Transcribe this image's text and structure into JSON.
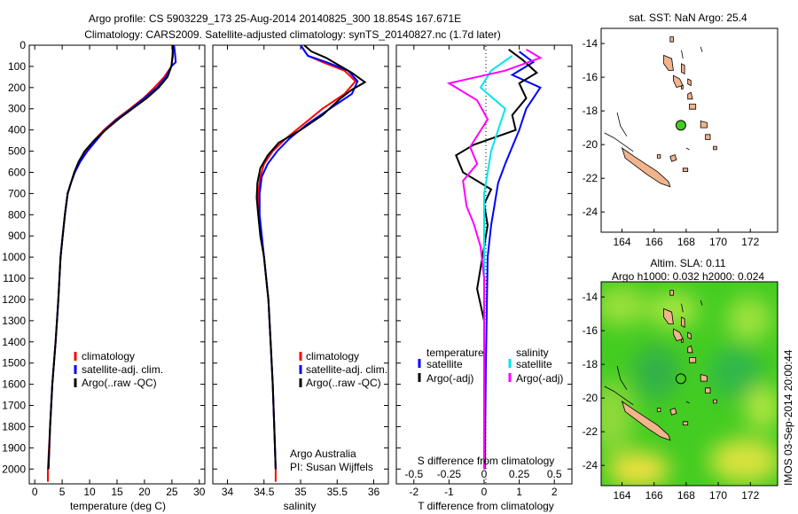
{
  "header": {
    "line1": "Argo profile: CS 5903229_173 25-Aug-2014 20140825_300 18.854S 167.671E",
    "line2": "Climatology: CARS2009. Satellite-adjusted climatology: synTS_20140827.nc (1.7d later)"
  },
  "colors": {
    "climatology": "#ff0000",
    "satellite": "#0000ff",
    "argo": "#000000",
    "cyan": "#00e5ee",
    "magenta": "#ff00ff",
    "land": "#f2b48c",
    "marker": "#44cc22"
  },
  "chart_data": [
    {
      "type": "line",
      "panel": "temperature",
      "xlabel": "temperature (deg C)",
      "xlim": [
        -1,
        31
      ],
      "xticks": [
        0,
        5,
        10,
        15,
        20,
        25,
        30
      ],
      "ylim": [
        0,
        2070
      ],
      "yticks": [
        0,
        100,
        200,
        300,
        400,
        500,
        600,
        700,
        800,
        900,
        1000,
        1100,
        1200,
        1300,
        1400,
        1500,
        1600,
        1700,
        1800,
        1900,
        2000
      ],
      "yreversed": true,
      "legend": [
        "climatology",
        "satellite-adj. clim.",
        "Argo(..raw -QC)"
      ],
      "series": [
        {
          "name": "climatology",
          "color": "#ff0000",
          "points": [
            [
              25.3,
              0
            ],
            [
              25.2,
              50
            ],
            [
              24.9,
              100
            ],
            [
              23.6,
              150
            ],
            [
              21.8,
              200
            ],
            [
              19.8,
              250
            ],
            [
              17.4,
              300
            ],
            [
              14.8,
              350
            ],
            [
              12.6,
              400
            ],
            [
              10.8,
              450
            ],
            [
              9.4,
              500
            ],
            [
              8.2,
              550
            ],
            [
              7.3,
              600
            ],
            [
              6.6,
              650
            ],
            [
              6.0,
              700
            ],
            [
              5.5,
              800
            ],
            [
              5.1,
              900
            ],
            [
              4.7,
              1000
            ],
            [
              4.3,
              1200
            ],
            [
              3.8,
              1400
            ],
            [
              3.2,
              1600
            ],
            [
              2.8,
              1800
            ],
            [
              2.4,
              2000
            ],
            [
              2.4,
              2060
            ]
          ]
        },
        {
          "name": "satellite-adj. clim.",
          "color": "#0000ff",
          "points": [
            [
              25.4,
              0
            ],
            [
              25.6,
              50
            ],
            [
              25.7,
              80
            ],
            [
              24.9,
              100
            ],
            [
              23.9,
              150
            ],
            [
              22.3,
              200
            ],
            [
              20.0,
              250
            ],
            [
              17.6,
              300
            ],
            [
              15.0,
              350
            ],
            [
              12.8,
              400
            ],
            [
              11.2,
              450
            ],
            [
              9.6,
              500
            ],
            [
              8.3,
              550
            ],
            [
              7.3,
              600
            ],
            [
              6.6,
              650
            ],
            [
              6.0,
              700
            ],
            [
              5.5,
              800
            ],
            [
              5.1,
              900
            ],
            [
              4.7,
              1000
            ],
            [
              4.3,
              1200
            ],
            [
              3.8,
              1400
            ],
            [
              3.2,
              1600
            ],
            [
              2.8,
              1800
            ],
            [
              2.5,
              2000
            ]
          ]
        },
        {
          "name": "Argo(..raw -QC)",
          "color": "#000000",
          "points": [
            [
              25.2,
              0
            ],
            [
              25.1,
              50
            ],
            [
              24.9,
              100
            ],
            [
              24.2,
              150
            ],
            [
              22.6,
              200
            ],
            [
              20.4,
              250
            ],
            [
              17.8,
              300
            ],
            [
              15.2,
              350
            ],
            [
              12.9,
              400
            ],
            [
              10.8,
              450
            ],
            [
              9.1,
              500
            ],
            [
              8.0,
              550
            ],
            [
              7.2,
              600
            ],
            [
              6.6,
              650
            ],
            [
              6.0,
              700
            ],
            [
              5.5,
              800
            ],
            [
              5.1,
              900
            ],
            [
              4.7,
              1000
            ],
            [
              4.3,
              1200
            ],
            [
              3.8,
              1400
            ],
            [
              3.2,
              1600
            ],
            [
              2.8,
              1800
            ],
            [
              2.5,
              2000
            ]
          ]
        }
      ]
    },
    {
      "type": "line",
      "panel": "salinity",
      "xlabel": "salinity",
      "xlim": [
        33.8,
        36.2
      ],
      "xticks": [
        34,
        34.5,
        35,
        35.5,
        36
      ],
      "ylim": [
        0,
        2070
      ],
      "yreversed": true,
      "legend": [
        "climatology",
        "satellite-adj. clim.",
        "Argo(..raw -QC)"
      ],
      "annotation": [
        "Argo Australia",
        "PI: Susan Wijffels"
      ],
      "series": [
        {
          "name": "climatology",
          "color": "#ff0000",
          "points": [
            [
              35.0,
              0
            ],
            [
              35.1,
              50
            ],
            [
              35.3,
              80
            ],
            [
              35.6,
              120
            ],
            [
              35.75,
              170
            ],
            [
              35.6,
              230
            ],
            [
              35.3,
              300
            ],
            [
              35.05,
              370
            ],
            [
              34.8,
              440
            ],
            [
              34.62,
              500
            ],
            [
              34.5,
              560
            ],
            [
              34.45,
              620
            ],
            [
              34.42,
              700
            ],
            [
              34.43,
              800
            ],
            [
              34.46,
              900
            ],
            [
              34.5,
              1000
            ],
            [
              34.53,
              1100
            ],
            [
              34.56,
              1200
            ],
            [
              34.59,
              1400
            ],
            [
              34.62,
              1600
            ],
            [
              34.64,
              1800
            ],
            [
              34.66,
              2000
            ],
            [
              34.66,
              2060
            ]
          ]
        },
        {
          "name": "satellite-adj. clim.",
          "color": "#0000ff",
          "points": [
            [
              35.0,
              0
            ],
            [
              35.1,
              50
            ],
            [
              35.35,
              80
            ],
            [
              35.65,
              120
            ],
            [
              35.78,
              170
            ],
            [
              35.7,
              230
            ],
            [
              35.4,
              300
            ],
            [
              35.1,
              370
            ],
            [
              34.85,
              440
            ],
            [
              34.68,
              500
            ],
            [
              34.55,
              560
            ],
            [
              34.47,
              620
            ],
            [
              34.44,
              700
            ],
            [
              34.44,
              800
            ],
            [
              34.47,
              900
            ],
            [
              34.5,
              1000
            ],
            [
              34.53,
              1100
            ],
            [
              34.56,
              1200
            ],
            [
              34.59,
              1400
            ],
            [
              34.62,
              1600
            ],
            [
              34.64,
              1800
            ],
            [
              34.66,
              2000
            ]
          ]
        },
        {
          "name": "Argo(..raw -QC)",
          "color": "#000000",
          "points": [
            [
              35.05,
              0
            ],
            [
              35.15,
              30
            ],
            [
              35.35,
              60
            ],
            [
              35.5,
              90
            ],
            [
              35.7,
              130
            ],
            [
              35.88,
              175
            ],
            [
              35.7,
              210
            ],
            [
              35.55,
              250
            ],
            [
              35.3,
              330
            ],
            [
              35.0,
              400
            ],
            [
              34.7,
              460
            ],
            [
              34.55,
              520
            ],
            [
              34.45,
              580
            ],
            [
              34.41,
              650
            ],
            [
              34.4,
              720
            ],
            [
              34.42,
              800
            ],
            [
              34.45,
              900
            ],
            [
              34.5,
              1000
            ],
            [
              34.53,
              1100
            ],
            [
              34.56,
              1200
            ],
            [
              34.59,
              1400
            ],
            [
              34.62,
              1600
            ],
            [
              34.64,
              1800
            ],
            [
              34.66,
              2000
            ]
          ]
        }
      ]
    },
    {
      "type": "line",
      "panel": "difference",
      "xlabel": "T difference from climatology",
      "xlabel2": "S difference from climatology",
      "xlim": [
        -2.5,
        2.5
      ],
      "xticks": [
        -2,
        -1,
        0,
        1,
        2
      ],
      "xticks2": [
        "-0.5",
        "-0.25",
        "0",
        "0.25",
        "0.5"
      ],
      "ylim": [
        0,
        2070
      ],
      "yreversed": true,
      "legend_headers": [
        "temperature",
        "salinity"
      ],
      "legend_temperature": [
        "satellite",
        "Argo(-adj)"
      ],
      "legend_salinity": [
        "satellite",
        "Argo(-adj)"
      ],
      "series": [
        {
          "name": "temperature satellite",
          "color": "#0000ff",
          "points": [
            [
              1.0,
              30
            ],
            [
              1.4,
              80
            ],
            [
              0.8,
              140
            ],
            [
              1.6,
              200
            ],
            [
              1.2,
              300
            ],
            [
              1.0,
              400
            ],
            [
              0.8,
              480
            ],
            [
              0.6,
              560
            ],
            [
              0.4,
              650
            ],
            [
              0.3,
              750
            ],
            [
              0.2,
              850
            ],
            [
              0.1,
              1000
            ],
            [
              0.05,
              1500
            ],
            [
              0.02,
              2000
            ]
          ]
        },
        {
          "name": "temperature Argo(-adj)",
          "color": "#000000",
          "points": [
            [
              0.7,
              20
            ],
            [
              1.1,
              70
            ],
            [
              1.5,
              130
            ],
            [
              1.0,
              180
            ],
            [
              1.2,
              250
            ],
            [
              0.8,
              330
            ],
            [
              0.9,
              400
            ],
            [
              -0.3,
              470
            ],
            [
              -0.8,
              520
            ],
            [
              -0.6,
              600
            ],
            [
              0.2,
              680
            ],
            [
              0.0,
              750
            ],
            [
              0.1,
              850
            ],
            [
              0.0,
              950
            ],
            [
              -0.2,
              1150
            ],
            [
              0.0,
              1300
            ],
            [
              0.0,
              1500
            ],
            [
              0.0,
              2000
            ]
          ]
        },
        {
          "name": "salinity satellite",
          "color": "#00e5ee",
          "points": [
            [
              0.8,
              50
            ],
            [
              0.2,
              120
            ],
            [
              -0.1,
              200
            ],
            [
              0.6,
              300
            ],
            [
              0.4,
              400
            ],
            [
              0.2,
              500
            ],
            [
              0.1,
              600
            ],
            [
              0.0,
              700
            ],
            [
              0.0,
              800
            ],
            [
              0.0,
              1000
            ],
            [
              0.0,
              1500
            ],
            [
              0.0,
              2000
            ]
          ]
        },
        {
          "name": "salinity Argo(-adj)",
          "color": "#ff00ff",
          "points": [
            [
              1.2,
              20
            ],
            [
              1.6,
              60
            ],
            [
              0.6,
              120
            ],
            [
              -1.0,
              180
            ],
            [
              -0.2,
              260
            ],
            [
              0.1,
              350
            ],
            [
              -0.4,
              480
            ],
            [
              -0.2,
              560
            ],
            [
              -0.6,
              640
            ],
            [
              -0.5,
              760
            ],
            [
              -0.3,
              840
            ],
            [
              -0.1,
              950
            ],
            [
              0.0,
              1100
            ],
            [
              0.0,
              1500
            ],
            [
              0.0,
              2000
            ]
          ]
        }
      ]
    }
  ],
  "maps": [
    {
      "title": "sat. SST: NaN Argo: 25.4",
      "xticks": [
        164,
        166,
        168,
        170,
        172
      ],
      "yticks": [
        -14,
        -16,
        -18,
        -20,
        -22,
        -24
      ],
      "xlim": [
        162.7,
        173.7
      ],
      "ylim": [
        -25.2,
        -13.1
      ],
      "argo_position": [
        167.671,
        -18.854
      ],
      "background": "#ffffff"
    },
    {
      "title": "Altim. SLA: 0.11",
      "subtitle": "Argo h1000: 0.032 h2000: 0.024",
      "xticks": [
        164,
        166,
        168,
        170,
        172
      ],
      "yticks": [
        -14,
        -16,
        -18,
        -20,
        -22,
        -24
      ],
      "xlim": [
        162.7,
        173.7
      ],
      "ylim": [
        -25.2,
        -13.1
      ],
      "argo_position": [
        167.671,
        -18.854
      ],
      "background": "#44cc22"
    }
  ],
  "credit": "IMOS 03-Sep-2014 20:00:44"
}
